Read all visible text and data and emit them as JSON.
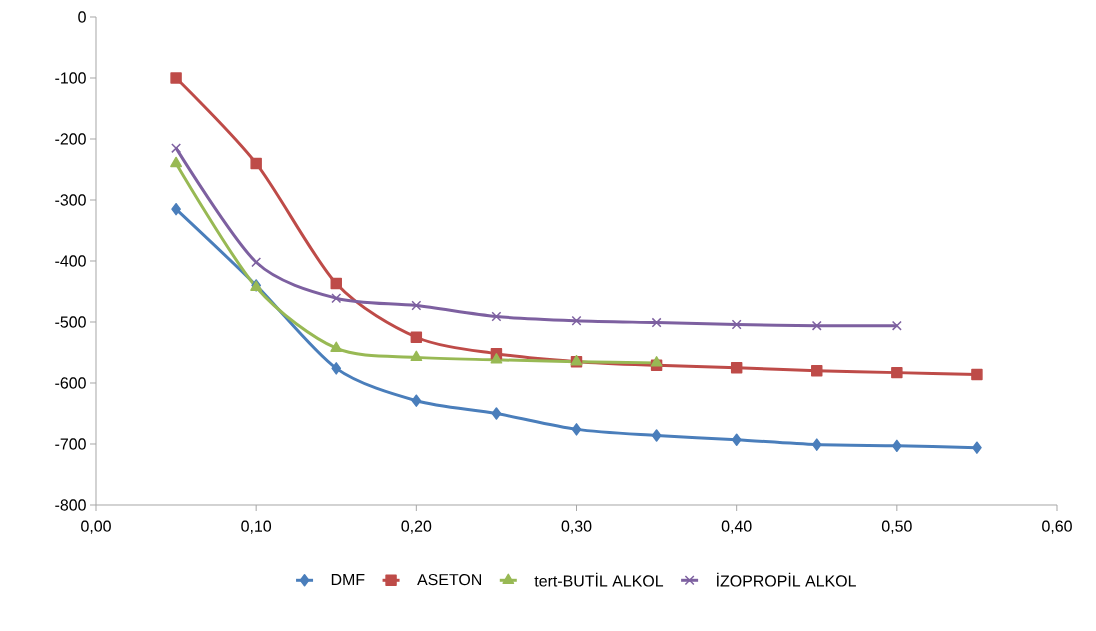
{
  "chart_data": {
    "type": "line",
    "x": [
      0.05,
      0.1,
      0.15,
      0.2,
      0.25,
      0.3,
      0.35,
      0.4,
      0.45,
      0.5,
      0.55
    ],
    "series": [
      {
        "name": "DMF",
        "color": "#4a7ebb",
        "marker": "diamond",
        "values": [
          -315,
          -440,
          -576,
          -629,
          -650,
          -676,
          -686,
          -693,
          -701,
          -703,
          -706
        ]
      },
      {
        "name": "ASETON",
        "color": "#be4b48",
        "marker": "square",
        "values": [
          -100,
          -240,
          -437,
          -525,
          -552,
          -565,
          -571,
          -575,
          -580,
          -583,
          -586
        ]
      },
      {
        "name": "tert-BUTİL ALKOL",
        "color": "#98b954",
        "marker": "triangle",
        "values": [
          -240,
          -443,
          -543,
          -558,
          -562,
          -565,
          -567,
          null,
          null,
          null,
          null
        ]
      },
      {
        "name": "İZOPROPİL ALKOL",
        "color": "#7d60a0",
        "marker": "cross",
        "values": [
          -215,
          -402,
          -461,
          -473,
          -491,
          -498,
          -501,
          -504,
          -506,
          -506,
          null
        ]
      }
    ],
    "xlim": [
      0,
      0.6
    ],
    "xticks": [
      {
        "value": 0,
        "label": "0,00"
      },
      {
        "value": 0.1,
        "label": "0,10"
      },
      {
        "value": 0.2,
        "label": "0,20"
      },
      {
        "value": 0.3,
        "label": "0,30"
      },
      {
        "value": 0.4,
        "label": "0,40"
      },
      {
        "value": 0.5,
        "label": "0,50"
      },
      {
        "value": 0.6,
        "label": "0,60"
      }
    ],
    "ylim": [
      -800,
      0
    ],
    "yticks": [
      -800,
      -700,
      -600,
      -500,
      -400,
      -300,
      -200,
      -100,
      0
    ],
    "grid": false,
    "legend": "bottom"
  }
}
